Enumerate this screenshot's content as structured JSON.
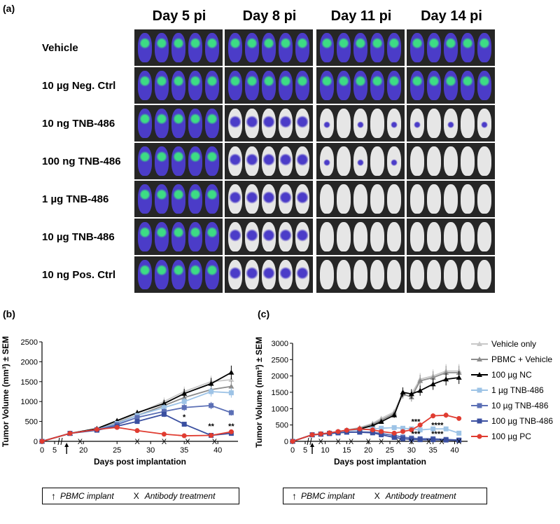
{
  "panel_labels": {
    "a": "(a)",
    "b": "(b)",
    "c": "(c)"
  },
  "imaging": {
    "days": [
      "Day 5 pi",
      "Day 8 pi",
      "Day 11 pi",
      "Day 14 pi"
    ],
    "groups": [
      "Vehicle",
      "10 µg Neg. Ctrl",
      "10 ng TNB-486",
      "100 ng TNB-486",
      "1 µg TNB-486",
      "10 µg TNB-486",
      "10 ng Pos. Ctrl"
    ],
    "signal_level": [
      [
        3,
        3,
        3,
        3
      ],
      [
        3,
        3,
        3,
        3
      ],
      [
        3,
        2,
        1,
        1
      ],
      [
        3,
        2,
        1,
        0
      ],
      [
        3,
        2,
        0,
        0
      ],
      [
        3,
        2,
        0,
        0
      ],
      [
        3,
        2,
        0,
        0
      ]
    ],
    "colors": {
      "background": "#262626",
      "mouse_white": "#e6e6e6",
      "signal_blue": "#4b3cc8",
      "signal_green": "#3ddc84"
    }
  },
  "chart_data": [
    {
      "type": "line",
      "panel": "(b)",
      "xlabel": "Days post implantation",
      "ylabel": "Tumor Volume (mm³) ± SEM",
      "ylim": [
        0,
        2500
      ],
      "yticks": [
        0,
        500,
        1000,
        1500,
        2000,
        2500
      ],
      "xticks": [
        0,
        5,
        20,
        25,
        30,
        35,
        40
      ],
      "series": [
        {
          "name": "Vehicle only",
          "color": "#c8c8c8",
          "marker": "triangle",
          "x": [
            0,
            18,
            22,
            25,
            28,
            32,
            35,
            39,
            42
          ],
          "y": [
            0,
            200,
            300,
            480,
            700,
            1000,
            1250,
            1500,
            1550
          ]
        },
        {
          "name": "PBMC + Vehicle",
          "color": "#8c8c8c",
          "marker": "triangle",
          "x": [
            0,
            18,
            22,
            25,
            28,
            32,
            35,
            39,
            42
          ],
          "y": [
            0,
            200,
            310,
            460,
            650,
            900,
            1100,
            1300,
            1380
          ]
        },
        {
          "name": "100 µg NC",
          "color": "#000000",
          "marker": "triangle",
          "x": [
            0,
            18,
            22,
            25,
            28,
            32,
            35,
            39,
            42
          ],
          "y": [
            0,
            200,
            320,
            520,
            720,
            950,
            1200,
            1450,
            1730
          ]
        },
        {
          "name": "1 µg TNB-486",
          "color": "#9dc3e6",
          "marker": "square",
          "x": [
            0,
            18,
            22,
            25,
            28,
            32,
            35,
            39,
            42
          ],
          "y": [
            0,
            200,
            300,
            450,
            650,
            850,
            1000,
            1250,
            1220
          ]
        },
        {
          "name": "10 µg TNB-486",
          "color": "#5b6fb5",
          "marker": "square",
          "x": [
            0,
            18,
            22,
            25,
            28,
            32,
            35,
            39,
            42
          ],
          "y": [
            0,
            200,
            290,
            420,
            600,
            750,
            850,
            900,
            720
          ]
        },
        {
          "name": "100 µg TNB-486",
          "color": "#3a4fa0",
          "marker": "square",
          "x": [
            0,
            18,
            22,
            25,
            28,
            32,
            35,
            39,
            42
          ],
          "y": [
            0,
            200,
            280,
            380,
            500,
            680,
            430,
            150,
            200
          ]
        },
        {
          "name": "100 µg PC",
          "color": "#e03c31",
          "marker": "circle",
          "x": [
            0,
            18,
            22,
            25,
            28,
            32,
            35,
            39,
            42
          ],
          "y": [
            0,
            200,
            300,
            350,
            270,
            180,
            140,
            150,
            240
          ]
        }
      ],
      "annotations": [
        {
          "text": "*",
          "x": 35,
          "y": 550
        },
        {
          "text": "**",
          "x": 39,
          "y": 320
        },
        {
          "text": "**",
          "x": 42,
          "y": 320
        }
      ]
    },
    {
      "type": "line",
      "panel": "(c)",
      "xlabel": "Days post implantation",
      "ylabel": "Tumor Volume (mm³) ± SEM",
      "ylim": [
        0,
        3000
      ],
      "yticks": [
        0,
        500,
        1000,
        1500,
        2000,
        2500,
        3000
      ],
      "xticks": [
        0,
        5,
        10,
        15,
        20,
        25,
        30,
        35,
        40
      ],
      "series": [
        {
          "name": "Vehicle only",
          "color": "#c8c8c8",
          "marker": "triangle",
          "x": [
            0,
            7,
            9,
            11,
            13,
            15,
            18,
            21,
            23,
            26,
            28,
            30,
            32,
            35,
            38,
            41
          ],
          "y": [
            0,
            200,
            230,
            260,
            300,
            350,
            420,
            550,
            700,
            900,
            1500,
            1450,
            1900,
            2000,
            2150,
            2150
          ]
        },
        {
          "name": "PBMC + Vehicle",
          "color": "#8c8c8c",
          "marker": "triangle",
          "x": [
            0,
            7,
            9,
            11,
            13,
            15,
            18,
            21,
            23,
            26,
            28,
            30,
            32,
            35,
            38,
            41
          ],
          "y": [
            0,
            200,
            225,
            255,
            290,
            340,
            400,
            520,
            650,
            850,
            1450,
            1350,
            1850,
            1950,
            2100,
            2100
          ]
        },
        {
          "name": "100 µg NC",
          "color": "#000000",
          "marker": "triangle",
          "x": [
            0,
            7,
            9,
            11,
            13,
            15,
            18,
            21,
            23,
            26,
            28,
            30,
            32,
            35,
            38,
            41
          ],
          "y": [
            0,
            200,
            220,
            250,
            280,
            330,
            380,
            480,
            600,
            800,
            1500,
            1450,
            1550,
            1750,
            1900,
            1950
          ]
        },
        {
          "name": "1 µg TNB-486",
          "color": "#9dc3e6",
          "marker": "square",
          "x": [
            0,
            7,
            9,
            11,
            13,
            15,
            18,
            21,
            23,
            26,
            28,
            30,
            32,
            35,
            38,
            41
          ],
          "y": [
            0,
            200,
            220,
            250,
            280,
            320,
            350,
            380,
            400,
            420,
            400,
            380,
            350,
            380,
            380,
            250
          ]
        },
        {
          "name": "10 µg TNB-486",
          "color": "#5b6fb5",
          "marker": "square",
          "x": [
            0,
            7,
            9,
            11,
            13,
            15,
            18,
            21,
            23,
            26,
            28,
            30,
            32,
            35,
            38,
            41
          ],
          "y": [
            0,
            200,
            220,
            240,
            260,
            280,
            290,
            280,
            240,
            180,
            130,
            100,
            80,
            80,
            60,
            40
          ]
        },
        {
          "name": "100 µg TNB-486",
          "color": "#3a4fa0",
          "marker": "square",
          "x": [
            0,
            7,
            9,
            11,
            13,
            15,
            18,
            21,
            23,
            26,
            28,
            30,
            32,
            35,
            38,
            41
          ],
          "y": [
            0,
            200,
            220,
            240,
            260,
            280,
            280,
            260,
            200,
            120,
            80,
            60,
            50,
            50,
            40,
            30
          ]
        },
        {
          "name": "100 µg PC",
          "color": "#e03c31",
          "marker": "circle",
          "x": [
            0,
            7,
            9,
            11,
            13,
            15,
            18,
            21,
            23,
            26,
            28,
            30,
            32,
            35,
            38,
            41
          ],
          "y": [
            0,
            200,
            230,
            260,
            300,
            340,
            380,
            350,
            300,
            250,
            300,
            350,
            500,
            780,
            800,
            700
          ]
        }
      ],
      "annotations": [
        {
          "text": "***",
          "x": 31,
          "y": 520
        },
        {
          "text": "****",
          "x": 36,
          "y": 420
        },
        {
          "text": "***",
          "x": 31,
          "y": 150
        },
        {
          "text": "****",
          "x": 36,
          "y": 150
        }
      ]
    }
  ],
  "legend": [
    "Vehicle only",
    "PBMC + Vehicle",
    "100 µg NC",
    "1 µg TNB-486",
    "10 µg TNB-486",
    "100 µg TNB-486",
    "100 µg PC"
  ],
  "key": {
    "pbmc": "PBMC implant",
    "antibody": "Antibody treatment",
    "x_mark": "X"
  }
}
